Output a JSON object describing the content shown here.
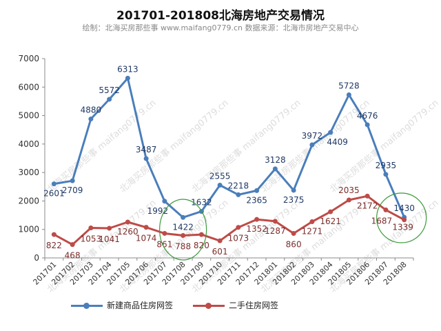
{
  "title": "201701-201808北海房地产交易情况",
  "subtitle": "绘制：北海买房那些事 www.maifang0779.cn 数据来源：北海市房地产交易中心",
  "watermark": "北海买房那些事 maifang0779.cn",
  "colors": {
    "new": "#4a7ebb",
    "resale": "#be4b48",
    "circle": "#3a9a3a",
    "axis": "#888888",
    "grid": "#d9d9d9"
  },
  "chart_data": {
    "type": "line",
    "categories": [
      "201701",
      "201702",
      "201703",
      "201704",
      "201705",
      "201706",
      "201707",
      "201708",
      "201709",
      "201710",
      "201711",
      "201712",
      "201801",
      "201802",
      "201803",
      "201804",
      "201805",
      "201806",
      "201807",
      "201808"
    ],
    "ylim": [
      0,
      7000
    ],
    "yticks": [
      0,
      1000,
      2000,
      3000,
      4000,
      5000,
      6000,
      7000
    ],
    "grid": false,
    "legend_position": "bottom",
    "series": [
      {
        "name": "新建商品住房网签",
        "values": [
          2601,
          2709,
          4880,
          5572,
          6313,
          3487,
          1992,
          1422,
          1632,
          2555,
          2218,
          2365,
          3128,
          2375,
          3972,
          4409,
          5728,
          4676,
          2935,
          1430
        ]
      },
      {
        "name": "二手住房网签",
        "values": [
          822,
          468,
          1053,
          1041,
          1260,
          1074,
          861,
          788,
          820,
          601,
          1073,
          1352,
          1287,
          860,
          1271,
          1621,
          2035,
          2172,
          1687,
          1339
        ]
      }
    ]
  }
}
